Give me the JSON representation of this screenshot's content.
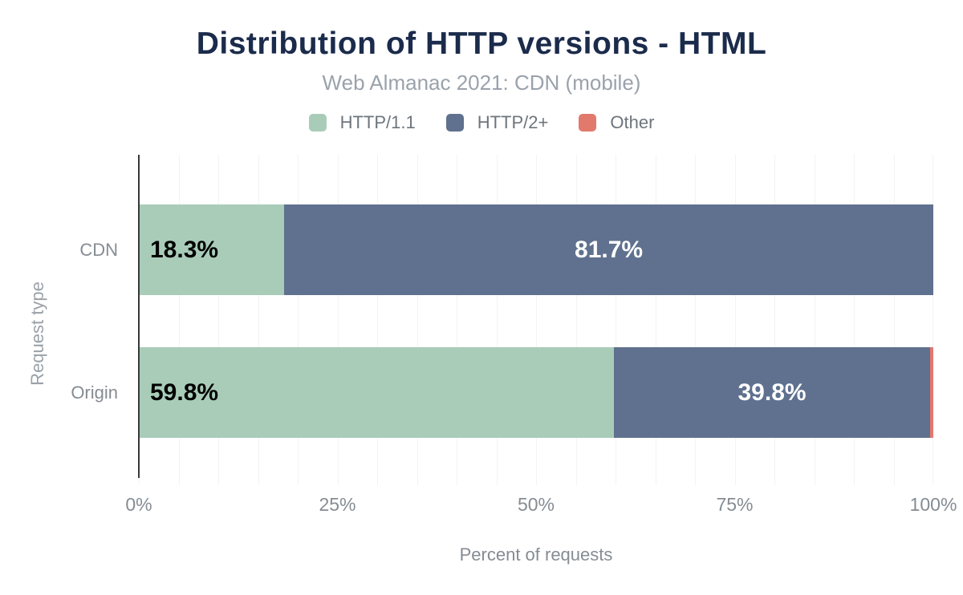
{
  "chart_data": {
    "type": "bar",
    "orientation": "horizontal-stacked",
    "title": "Distribution of HTTP versions - HTML",
    "subtitle": "Web Almanac 2021: CDN (mobile)",
    "xlabel": "Percent of requests",
    "ylabel": "Request type",
    "categories": [
      "CDN",
      "Origin"
    ],
    "series": [
      {
        "name": "HTTP/1.1",
        "color": "#a9ccb9",
        "values": [
          18.3,
          59.8
        ],
        "data_labels": [
          "18.3%",
          "59.8%"
        ],
        "label_color": "#000000",
        "label_align": "start"
      },
      {
        "name": "HTTP/2+",
        "color": "#5f718e",
        "values": [
          81.7,
          39.8
        ],
        "data_labels": [
          "81.7%",
          "39.8%"
        ],
        "label_color": "#ffffff",
        "label_align": "center"
      },
      {
        "name": "Other",
        "color": "#e2796d",
        "values": [
          0,
          0.4
        ],
        "data_labels": [
          "",
          ""
        ],
        "label_color": "#ffffff",
        "label_align": "center"
      }
    ],
    "x_ticks": [
      "0%",
      "25%",
      "50%",
      "75%",
      "100%"
    ],
    "xlim": [
      0,
      100
    ],
    "grid": {
      "minor_step_percent": 5,
      "color": "#f1f3f5"
    },
    "legend_position": "top-center",
    "axis_line_color": "#37393c",
    "title_color": "#1b2b4b",
    "subtitle_color": "#9aa2ab",
    "axis_text_color": "#858c93"
  }
}
